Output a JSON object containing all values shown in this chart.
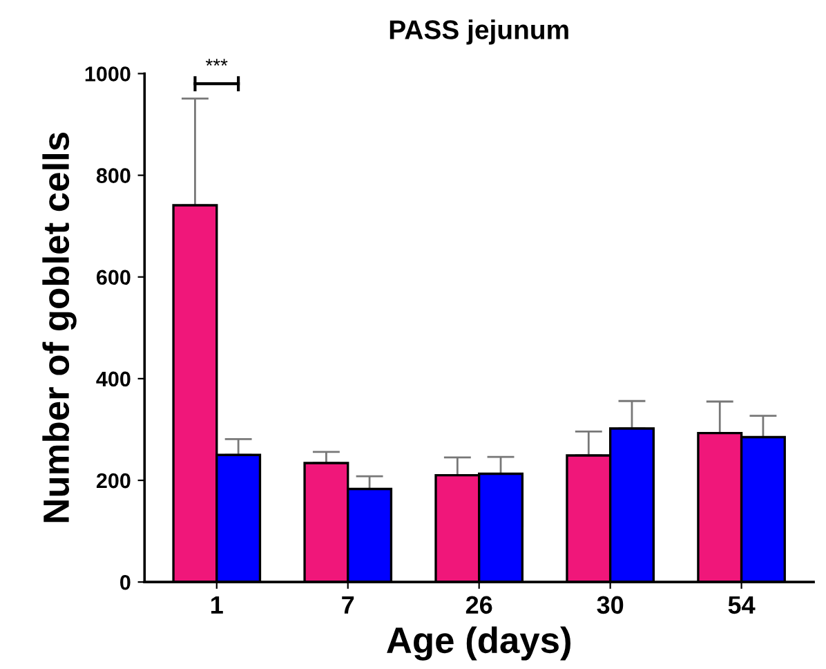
{
  "chart_data": {
    "type": "bar",
    "title": "PASS jejunum",
    "xlabel": "Age (days)",
    "ylabel": "Number of goblet cells",
    "categories": [
      "1",
      "7",
      "26",
      "30",
      "54"
    ],
    "series": [
      {
        "color": "#f0177a",
        "values": [
          741,
          234,
          210,
          249,
          293
        ],
        "errors": [
          [
            741,
            951
          ],
          [
            234,
            256
          ],
          [
            210,
            245
          ],
          [
            249,
            296
          ],
          [
            293,
            355
          ]
        ]
      },
      {
        "color": "#0000ff",
        "values": [
          250,
          183,
          213,
          302,
          285
        ],
        "errors": [
          [
            250,
            281
          ],
          [
            183,
            208
          ],
          [
            213,
            246
          ],
          [
            302,
            356
          ],
          [
            285,
            327
          ]
        ]
      }
    ],
    "ylim": [
      0,
      1000
    ],
    "yticks": [
      0,
      200,
      400,
      600,
      800,
      1000
    ],
    "grid": false,
    "legend": false,
    "annotations": [
      "***"
    ]
  }
}
